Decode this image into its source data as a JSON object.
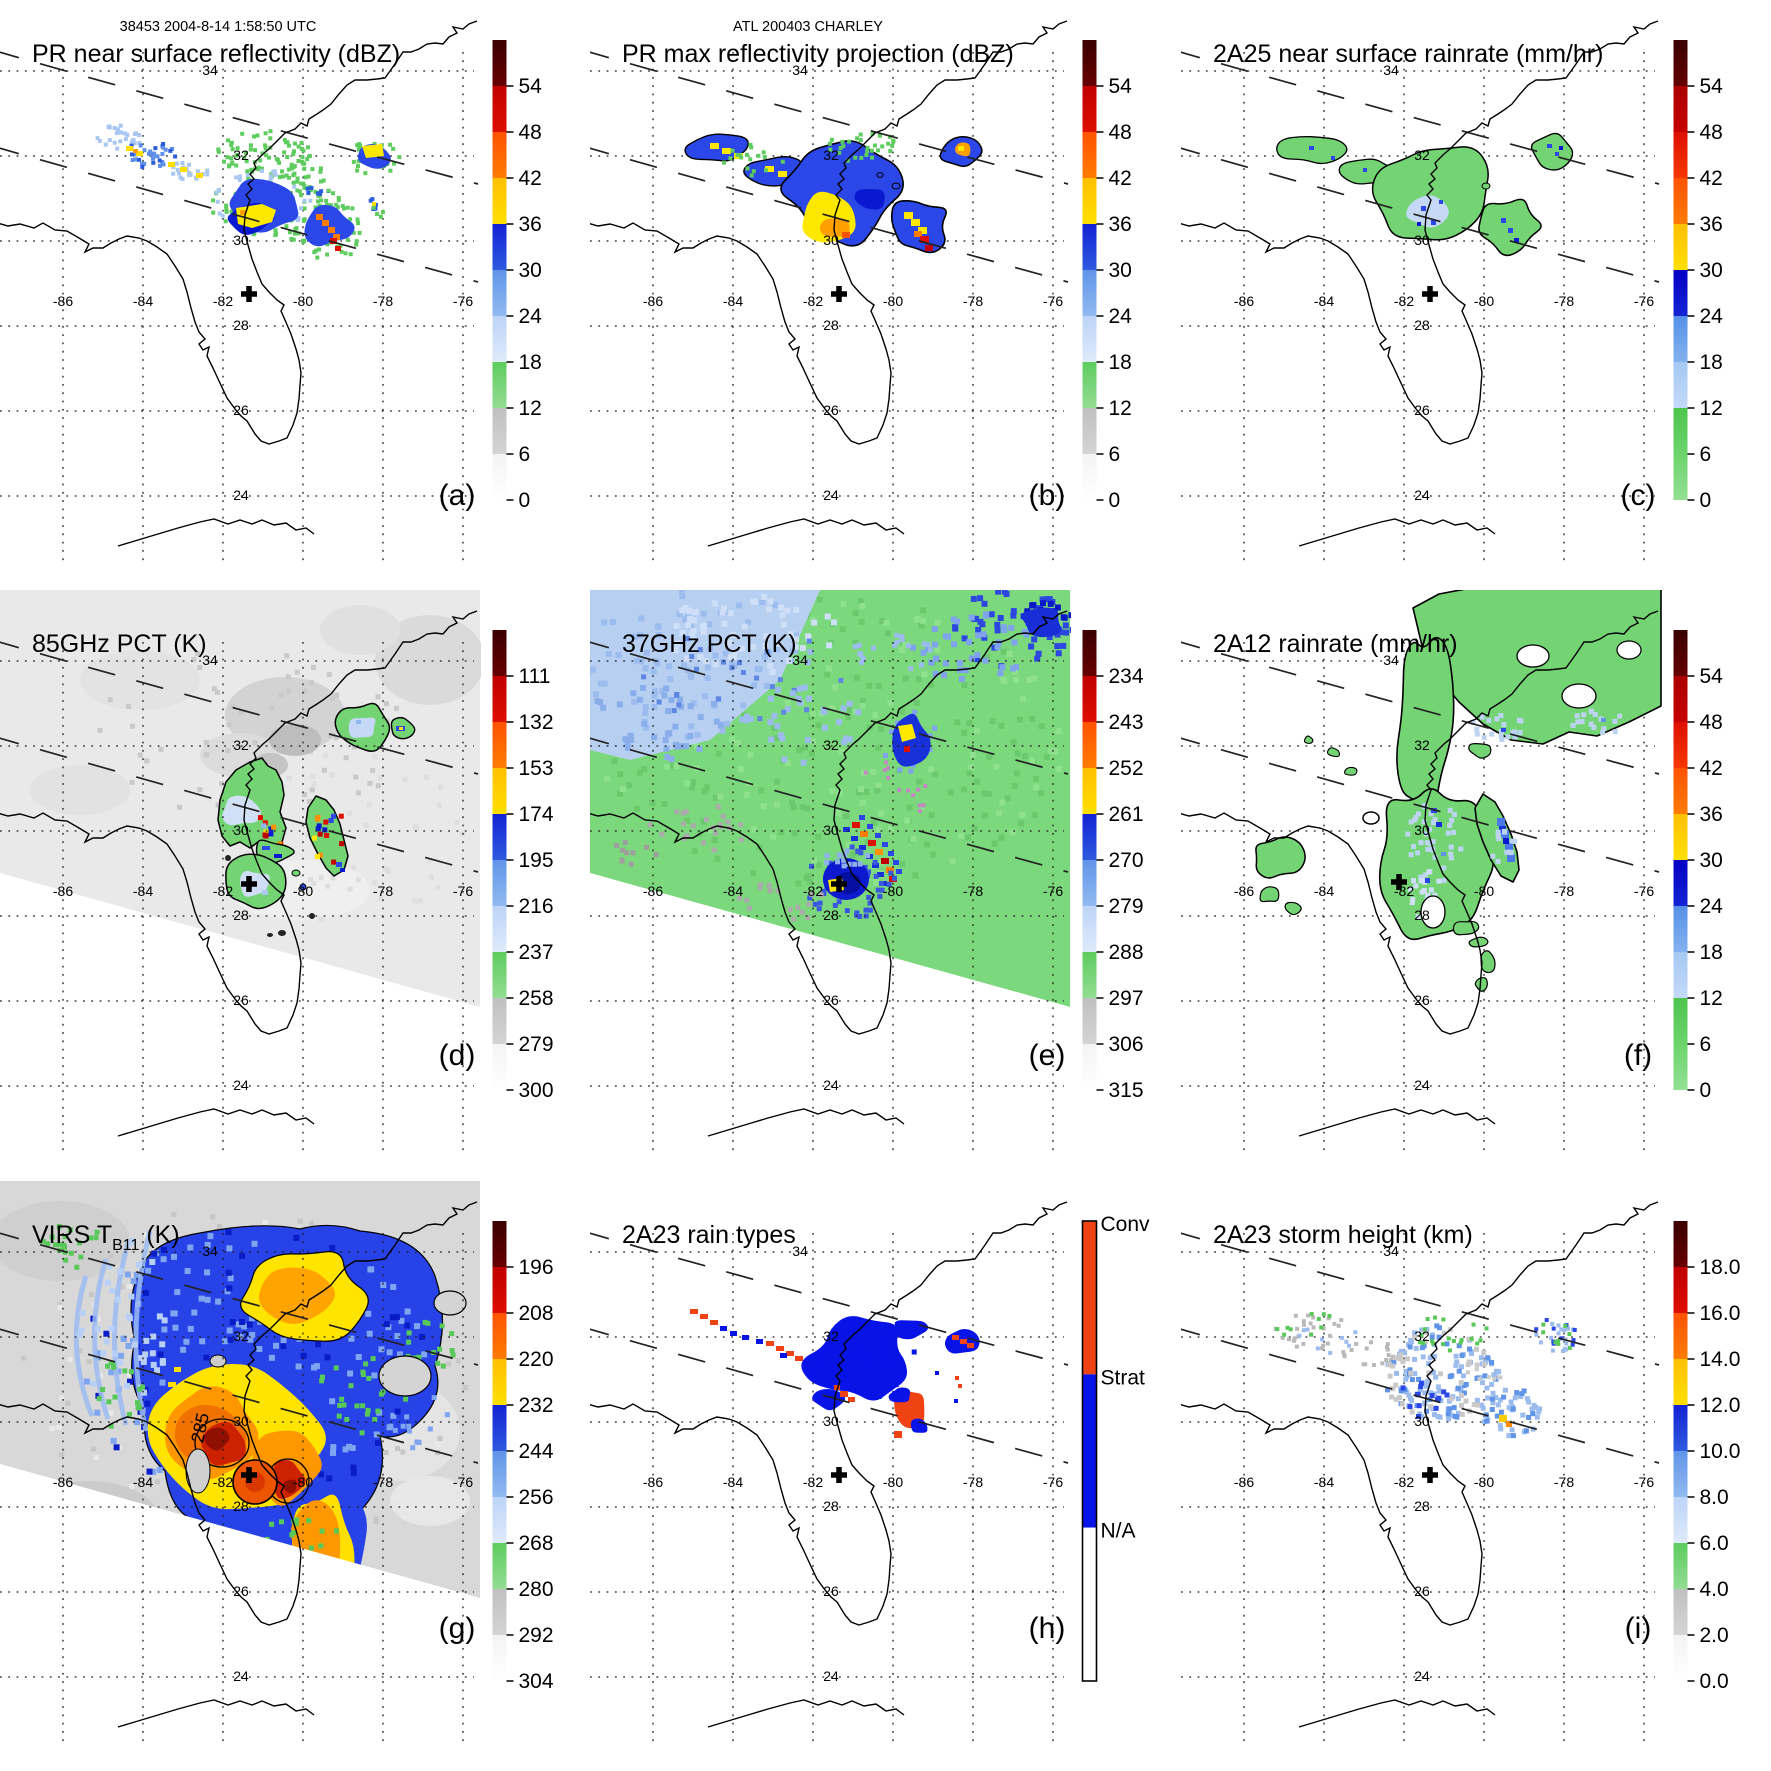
{
  "figure": {
    "background": "#ffffff",
    "orbit_header": "38453 2004-8-14 1:58:50 UTC",
    "storm_header": "ATL 200403 CHARLEY"
  },
  "map": {
    "lat_labels": [
      "34",
      "32",
      "30",
      "28",
      "26",
      "24"
    ],
    "lon_labels": [
      "-86",
      "-84",
      "-82",
      "-80",
      "-78",
      "-76"
    ],
    "coast_color": "#000000",
    "grid_color": "#1a1a1a",
    "storm_center_marker": {
      "symbol": "+",
      "lon": -81.4,
      "lat": 28.75
    }
  },
  "ramps": {
    "standard": [
      [
        0,
        "#ffffff"
      ],
      [
        0.07,
        "#f4f4f4"
      ],
      [
        0.1,
        "#e2e2e2"
      ],
      [
        0.13,
        "#d4d4d4"
      ],
      [
        0.17,
        "#c0c0c0"
      ],
      [
        0.2,
        "#acacac"
      ],
      [
        0.245,
        "#989898"
      ],
      [
        0.25,
        "#93dc93"
      ],
      [
        0.3,
        "#5ecc5e"
      ],
      [
        0.345,
        "#3fbf3f"
      ],
      [
        0.35,
        "#dfeafb"
      ],
      [
        0.4,
        "#bcd4f7"
      ],
      [
        0.45,
        "#92baf0"
      ],
      [
        0.5,
        "#5f94e8"
      ],
      [
        0.53,
        "#2f5ae0"
      ],
      [
        0.56,
        "#1222d4"
      ],
      [
        0.595,
        "#0400c4"
      ],
      [
        0.6,
        "#ffff00"
      ],
      [
        0.65,
        "#ffdf00"
      ],
      [
        0.695,
        "#ffc000"
      ],
      [
        0.7,
        "#ffa000"
      ],
      [
        0.75,
        "#ff7c00"
      ],
      [
        0.795,
        "#ff5200"
      ],
      [
        0.8,
        "#f63800"
      ],
      [
        0.85,
        "#dd0f00"
      ],
      [
        0.895,
        "#c00000"
      ],
      [
        0.9,
        "#8f0000"
      ],
      [
        0.95,
        "#670000"
      ],
      [
        1,
        "#3a0000"
      ]
    ],
    "rain": [
      [
        0,
        "#93e093"
      ],
      [
        0.08,
        "#6cd46c"
      ],
      [
        0.155,
        "#4cc44c"
      ],
      [
        0.16,
        "#dfeafb"
      ],
      [
        0.21,
        "#c4d9f8"
      ],
      [
        0.26,
        "#a5c8f3"
      ],
      [
        0.31,
        "#84b2ee"
      ],
      [
        0.36,
        "#5590e8"
      ],
      [
        0.41,
        "#2b5ce0"
      ],
      [
        0.45,
        "#1524d4"
      ],
      [
        0.485,
        "#0400c4"
      ],
      [
        0.49,
        "#ffff00"
      ],
      [
        0.54,
        "#ffdf00"
      ],
      [
        0.585,
        "#ffc000"
      ],
      [
        0.59,
        "#ffa000"
      ],
      [
        0.64,
        "#ff7c00"
      ],
      [
        0.69,
        "#ff5200"
      ],
      [
        0.7,
        "#f63800"
      ],
      [
        0.76,
        "#dd0f00"
      ],
      [
        0.82,
        "#c60000"
      ],
      [
        0.875,
        "#ab0000"
      ],
      [
        0.88,
        "#8f0000"
      ],
      [
        0.94,
        "#650000"
      ],
      [
        1,
        "#3a0000"
      ]
    ]
  },
  "panels": [
    {
      "id": "a",
      "letter": "(a)",
      "header": "38453 2004-8-14 1:58:50 UTC",
      "title": "PR near surface reflectivity (dBZ)",
      "colorbar": {
        "ramp": "standard",
        "ticks": [
          "54",
          "48",
          "42",
          "36",
          "30",
          "24",
          "18",
          "12",
          "6",
          "0"
        ]
      }
    },
    {
      "id": "b",
      "letter": "(b)",
      "header": "ATL 200403 CHARLEY",
      "title": "PR max reflectivity projection (dBZ)",
      "colorbar": {
        "ramp": "standard",
        "ticks": [
          "54",
          "48",
          "42",
          "36",
          "30",
          "24",
          "18",
          "12",
          "6",
          "0"
        ]
      }
    },
    {
      "id": "c",
      "letter": "(c)",
      "title": "2A25 near surface rainrate (mm/hr)",
      "colorbar": {
        "ramp": "rain",
        "ticks": [
          "54",
          "48",
          "42",
          "36",
          "30",
          "24",
          "18",
          "12",
          "6",
          "0"
        ]
      }
    },
    {
      "id": "d",
      "letter": "(d)",
      "title": "85GHz PCT (K)",
      "colorbar": {
        "ramp": "standard",
        "ticks": [
          "111",
          "132",
          "153",
          "174",
          "195",
          "216",
          "237",
          "258",
          "279",
          "300"
        ]
      }
    },
    {
      "id": "e",
      "letter": "(e)",
      "title": "37GHz PCT (K)",
      "colorbar": {
        "ramp": "standard",
        "ticks": [
          "234",
          "243",
          "252",
          "261",
          "270",
          "279",
          "288",
          "297",
          "306",
          "315"
        ]
      }
    },
    {
      "id": "f",
      "letter": "(f)",
      "title": "2A12 rainrate (mm/hr)",
      "colorbar": {
        "ramp": "rain",
        "ticks": [
          "54",
          "48",
          "42",
          "36",
          "30",
          "24",
          "18",
          "12",
          "6",
          "0"
        ]
      }
    },
    {
      "id": "g",
      "letter": "(g)",
      "title": "VIRS TB11 (K)",
      "title_pre": "VIRS T",
      "title_sub": "B11",
      "title_post": " (K)",
      "contour_label": "285",
      "colorbar": {
        "ramp": "standard",
        "ticks": [
          "196",
          "208",
          "220",
          "232",
          "244",
          "256",
          "268",
          "280",
          "292",
          "304"
        ]
      }
    },
    {
      "id": "h",
      "letter": "(h)",
      "title": "2A23 rain types",
      "colorbar": {
        "ramp": "categorical",
        "categories": [
          {
            "label": "Conv",
            "color": "#f04314"
          },
          {
            "label": "Strat",
            "color": "#0813e8"
          },
          {
            "label": "N/A",
            "color": "#ffffff"
          }
        ]
      }
    },
    {
      "id": "i",
      "letter": "(i)",
      "title": "2A23 storm height (km)",
      "colorbar": {
        "ramp": "standard",
        "ticks": [
          "18.0",
          "16.0",
          "14.0",
          "12.0",
          "10.0",
          "8.0",
          "6.0",
          "4.0",
          "2.0",
          "0.0"
        ]
      }
    }
  ],
  "chart_data": {
    "type": "heatmap",
    "layout": "3x3 geographic map panels, shared basemap of Florida / SE US coast / Cuba",
    "satellite_overpass": {
      "orbit": "38453",
      "datetime_utc": "2004-8-14 1:58:50 UTC",
      "storm": "ATL 200403 CHARLEY"
    },
    "geographic_extent": {
      "lon_min": -87.6,
      "lon_max": -75.8,
      "lat_min": 22.3,
      "lat_max": 35.7
    },
    "gridline_lons": [
      -86,
      -84,
      -82,
      -80,
      -78,
      -76
    ],
    "gridline_lats": [
      34,
      32,
      30,
      28,
      26,
      24
    ],
    "storm_center": {
      "lon": -81.4,
      "lat": 28.75
    },
    "swath_edge_dashed_lines": 2,
    "panels": [
      {
        "label": "(a)",
        "title": "PR near surface reflectivity (dBZ)",
        "units": "dBZ",
        "colorbar_ticks": [
          54,
          48,
          42,
          36,
          30,
          24,
          18,
          12,
          6,
          0
        ]
      },
      {
        "label": "(b)",
        "title": "PR max reflectivity projection (dBZ)",
        "units": "dBZ",
        "colorbar_ticks": [
          54,
          48,
          42,
          36,
          30,
          24,
          18,
          12,
          6,
          0
        ]
      },
      {
        "label": "(c)",
        "title": "2A25 near surface rainrate (mm/hr)",
        "units": "mm/hr",
        "colorbar_ticks": [
          54,
          48,
          42,
          36,
          30,
          24,
          18,
          12,
          6,
          0
        ]
      },
      {
        "label": "(d)",
        "title": "85GHz PCT (K)",
        "units": "K",
        "colorbar_ticks": [
          111,
          132,
          153,
          174,
          195,
          216,
          237,
          258,
          279,
          300
        ]
      },
      {
        "label": "(e)",
        "title": "37GHz PCT (K)",
        "units": "K",
        "colorbar_ticks": [
          234,
          243,
          252,
          261,
          270,
          279,
          288,
          297,
          306,
          315
        ]
      },
      {
        "label": "(f)",
        "title": "2A12 rainrate (mm/hr)",
        "units": "mm/hr",
        "colorbar_ticks": [
          54,
          48,
          42,
          36,
          30,
          24,
          18,
          12,
          6,
          0
        ]
      },
      {
        "label": "(g)",
        "title": "VIRS TB11 (K)",
        "units": "K",
        "colorbar_ticks": [
          196,
          208,
          220,
          232,
          244,
          256,
          268,
          280,
          292,
          304
        ],
        "contour_label_value": 285
      },
      {
        "label": "(h)",
        "title": "2A23 rain types",
        "categories": [
          "Conv",
          "Strat",
          "N/A"
        ]
      },
      {
        "label": "(i)",
        "title": "2A23 storm height (km)",
        "units": "km",
        "colorbar_ticks": [
          18,
          16,
          14,
          12,
          10,
          8,
          6,
          4,
          2,
          0
        ]
      }
    ]
  }
}
